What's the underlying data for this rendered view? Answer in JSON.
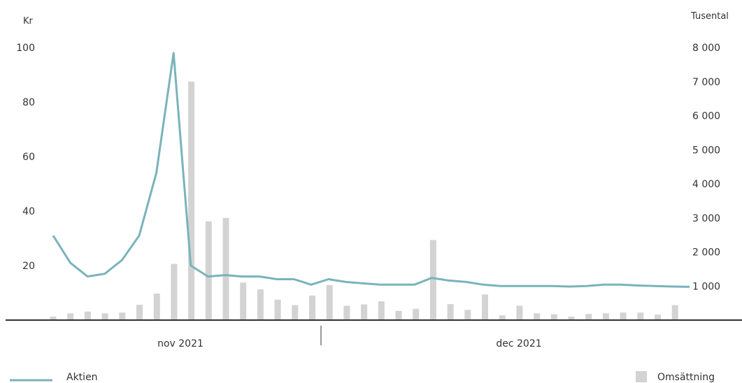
{
  "chart_data": {
    "type": "bar+line",
    "left_axis": {
      "unit": "Kr",
      "ticks": [
        "100",
        "80",
        "60",
        "40",
        "20"
      ],
      "ylim": [
        0,
        100
      ]
    },
    "right_axis": {
      "unit": "Tusental",
      "ticks": [
        "8 000",
        "7 000",
        "6 000",
        "5 000",
        "4 000",
        "3 000",
        "2 000",
        "1 000"
      ],
      "ylim": [
        0,
        8000
      ]
    },
    "months": [
      "nov 2021",
      "dec 2021"
    ],
    "line_series": {
      "name": "Aktien",
      "color": "#7ab3bb",
      "values": [
        31,
        21,
        16,
        17,
        22,
        31,
        54,
        98,
        20,
        16,
        16.5,
        16,
        16,
        15,
        15,
        13,
        15,
        14,
        13.5,
        13,
        13,
        13,
        15.5,
        14.5,
        14,
        13,
        12.5,
        12.5,
        12.5,
        12.5,
        12.3,
        12.5,
        13,
        13,
        12.7,
        12.5,
        12.3,
        12.2
      ]
    },
    "bar_series": {
      "name": "Omsättning",
      "color": "#d3d3d3",
      "values": [
        100,
        200,
        250,
        200,
        220,
        450,
        780,
        1650,
        7000,
        2900,
        3000,
        1100,
        900,
        600,
        440,
        720,
        1030,
        420,
        460,
        550,
        270,
        330,
        2350,
        470,
        300,
        750,
        140,
        420,
        200,
        170,
        100,
        180,
        200,
        220,
        220,
        160,
        440
      ]
    },
    "legend": [
      {
        "label": "Aktien",
        "symbol": "line"
      },
      {
        "label": "Omsättning",
        "symbol": "square"
      }
    ]
  }
}
